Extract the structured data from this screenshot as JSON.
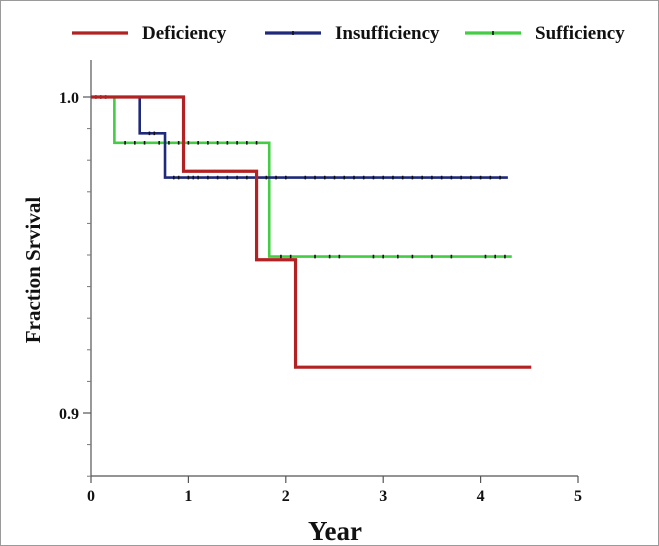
{
  "chart_data": {
    "type": "line",
    "title": "",
    "xlabel": "Year",
    "ylabel": "Fraction Srvival",
    "xlim": [
      0,
      5
    ],
    "ylim": [
      0.88,
      1.0
    ],
    "x_ticks": [
      0,
      1,
      2,
      3,
      4,
      5
    ],
    "x_tick_labels": [
      "0",
      "1",
      "2",
      "3",
      "4",
      "5"
    ],
    "y_ticks": [
      0.9,
      1.0
    ],
    "y_tick_labels": [
      "0.9",
      "1.0"
    ],
    "grid": false,
    "legend_position": "top",
    "series": [
      {
        "name": "Deficiency",
        "color": "#b22222",
        "step": true,
        "points": [
          [
            0,
            1.0
          ],
          [
            0.95,
            1.0
          ],
          [
            0.95,
            0.9765
          ],
          [
            1.7,
            0.9765
          ],
          [
            1.7,
            0.9485
          ],
          [
            2.1,
            0.9485
          ],
          [
            2.1,
            0.9145
          ],
          [
            4.52,
            0.9145
          ]
        ],
        "censored_x": []
      },
      {
        "name": "Insufficiency",
        "color": "#1f2a7a",
        "step": true,
        "points": [
          [
            0,
            1.0
          ],
          [
            0.5,
            1.0
          ],
          [
            0.5,
            0.9885
          ],
          [
            0.76,
            0.9885
          ],
          [
            0.76,
            0.9745
          ],
          [
            4.28,
            0.9745
          ]
        ],
        "censored_x": [
          0.05,
          0.1,
          0.15,
          0.6,
          0.65,
          0.85,
          0.9,
          1.0,
          1.05,
          1.1,
          1.2,
          1.3,
          1.4,
          1.5,
          1.6,
          1.7,
          1.8,
          1.9,
          2.0,
          2.2,
          2.3,
          2.4,
          2.5,
          2.6,
          2.7,
          2.8,
          2.9,
          3.0,
          3.1,
          3.2,
          3.3,
          3.4,
          3.5,
          3.6,
          3.7,
          3.8,
          3.9,
          4.0,
          4.1,
          4.2
        ]
      },
      {
        "name": "Sufficiency",
        "color": "#44cc44",
        "step": true,
        "points": [
          [
            0,
            1.0
          ],
          [
            0.24,
            1.0
          ],
          [
            0.24,
            0.9855
          ],
          [
            1.83,
            0.9855
          ],
          [
            1.83,
            0.9495
          ],
          [
            4.32,
            0.9495
          ]
        ],
        "censored_x": [
          0.35,
          0.45,
          0.55,
          0.7,
          0.8,
          0.9,
          1.0,
          1.1,
          1.2,
          1.3,
          1.4,
          1.5,
          1.6,
          1.7,
          1.95,
          2.05,
          2.3,
          2.45,
          2.55,
          2.9,
          3.0,
          3.15,
          3.3,
          3.5,
          3.7,
          4.05,
          4.15,
          4.25
        ]
      }
    ]
  }
}
